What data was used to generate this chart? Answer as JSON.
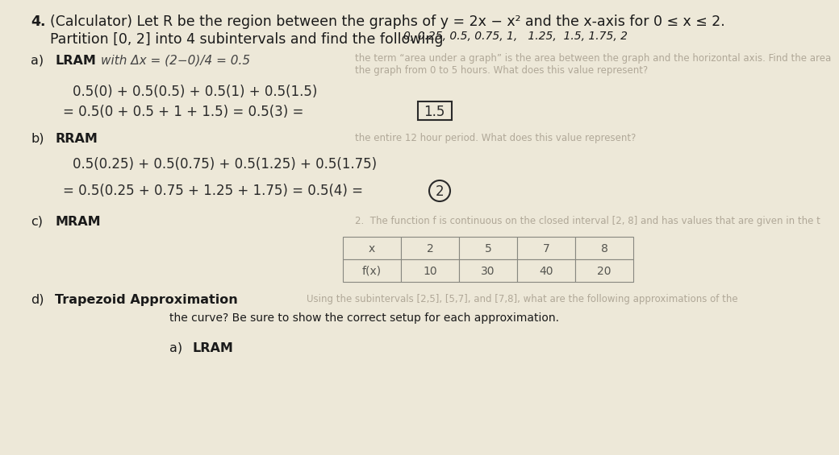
{
  "bg_color": "#ede8d8",
  "text_color": "#1a1a1a",
  "faded_color": "#b0a898",
  "handwrite_color": "#2a2a2a",
  "title_num": "4.",
  "title_line1": "(Calculator) Let R be the region between the graphs of y = 2x − x² and the x-axis for 0 ≤ x ≤ 2.",
  "title_line2": "Partition [0, 2] into 4 subintervals and find the following",
  "title_extra": "0, 0.25, 0.5, 0.75, 1,   1.25,  1.5, 1.75, 2",
  "a_label": "a)",
  "a_title": "LRAM",
  "a_hw1": "with Δx = (2−0)/4 = 0.5",
  "a_faded1": "the term “area under a graph” is the area between the graph and the horizontal axis. Find the area",
  "a_faded2": "the graph from 0 to 5 hours. What does this value represent?",
  "a_line1": "0.5(0) + 0.5(0.5) + 0.5(1) + 0.5(1.5)",
  "a_line2": "= 0.5(0 + 0.5 + 1 + 1.5) = 0.5(3) =",
  "a_answer": "1.5",
  "b_label": "b)",
  "b_title": "RRAM",
  "b_faded1": "the entire 12 hour period. What does this value represent?",
  "b_line1": "0.5(0.25) + 0.5(0.75) + 0.5(1.25) + 0.5(1.75)",
  "b_line2": "= 0.5(0.25 + 0.75 + 1.25 + 1.75) = 0.5(4) =",
  "b_answer": "2",
  "c_label": "c)",
  "c_title": "MRAM",
  "c_faded": "2.  The function f is continuous on the closed interval [2, 8] and has values that are given in the t",
  "table_x_vals": [
    "x",
    "2",
    "5",
    "7",
    "8"
  ],
  "table_f_vals": [
    "f(x)",
    "10",
    "30",
    "40",
    "20"
  ],
  "d_label": "d)",
  "d_title": "Trapezoid Approximation",
  "d_faded": "Using the subintervals [2,5], [5,7], and [7,8], what are the following approximations of the",
  "d_line2": "the curve? Be sure to show the correct setup for each approximation.",
  "a2_label": "a)",
  "a2_title": "LRAM",
  "font_title": 12.5,
  "font_body": 11.5,
  "font_hw": 11.0,
  "font_faded": 8.5,
  "font_small": 10.0
}
